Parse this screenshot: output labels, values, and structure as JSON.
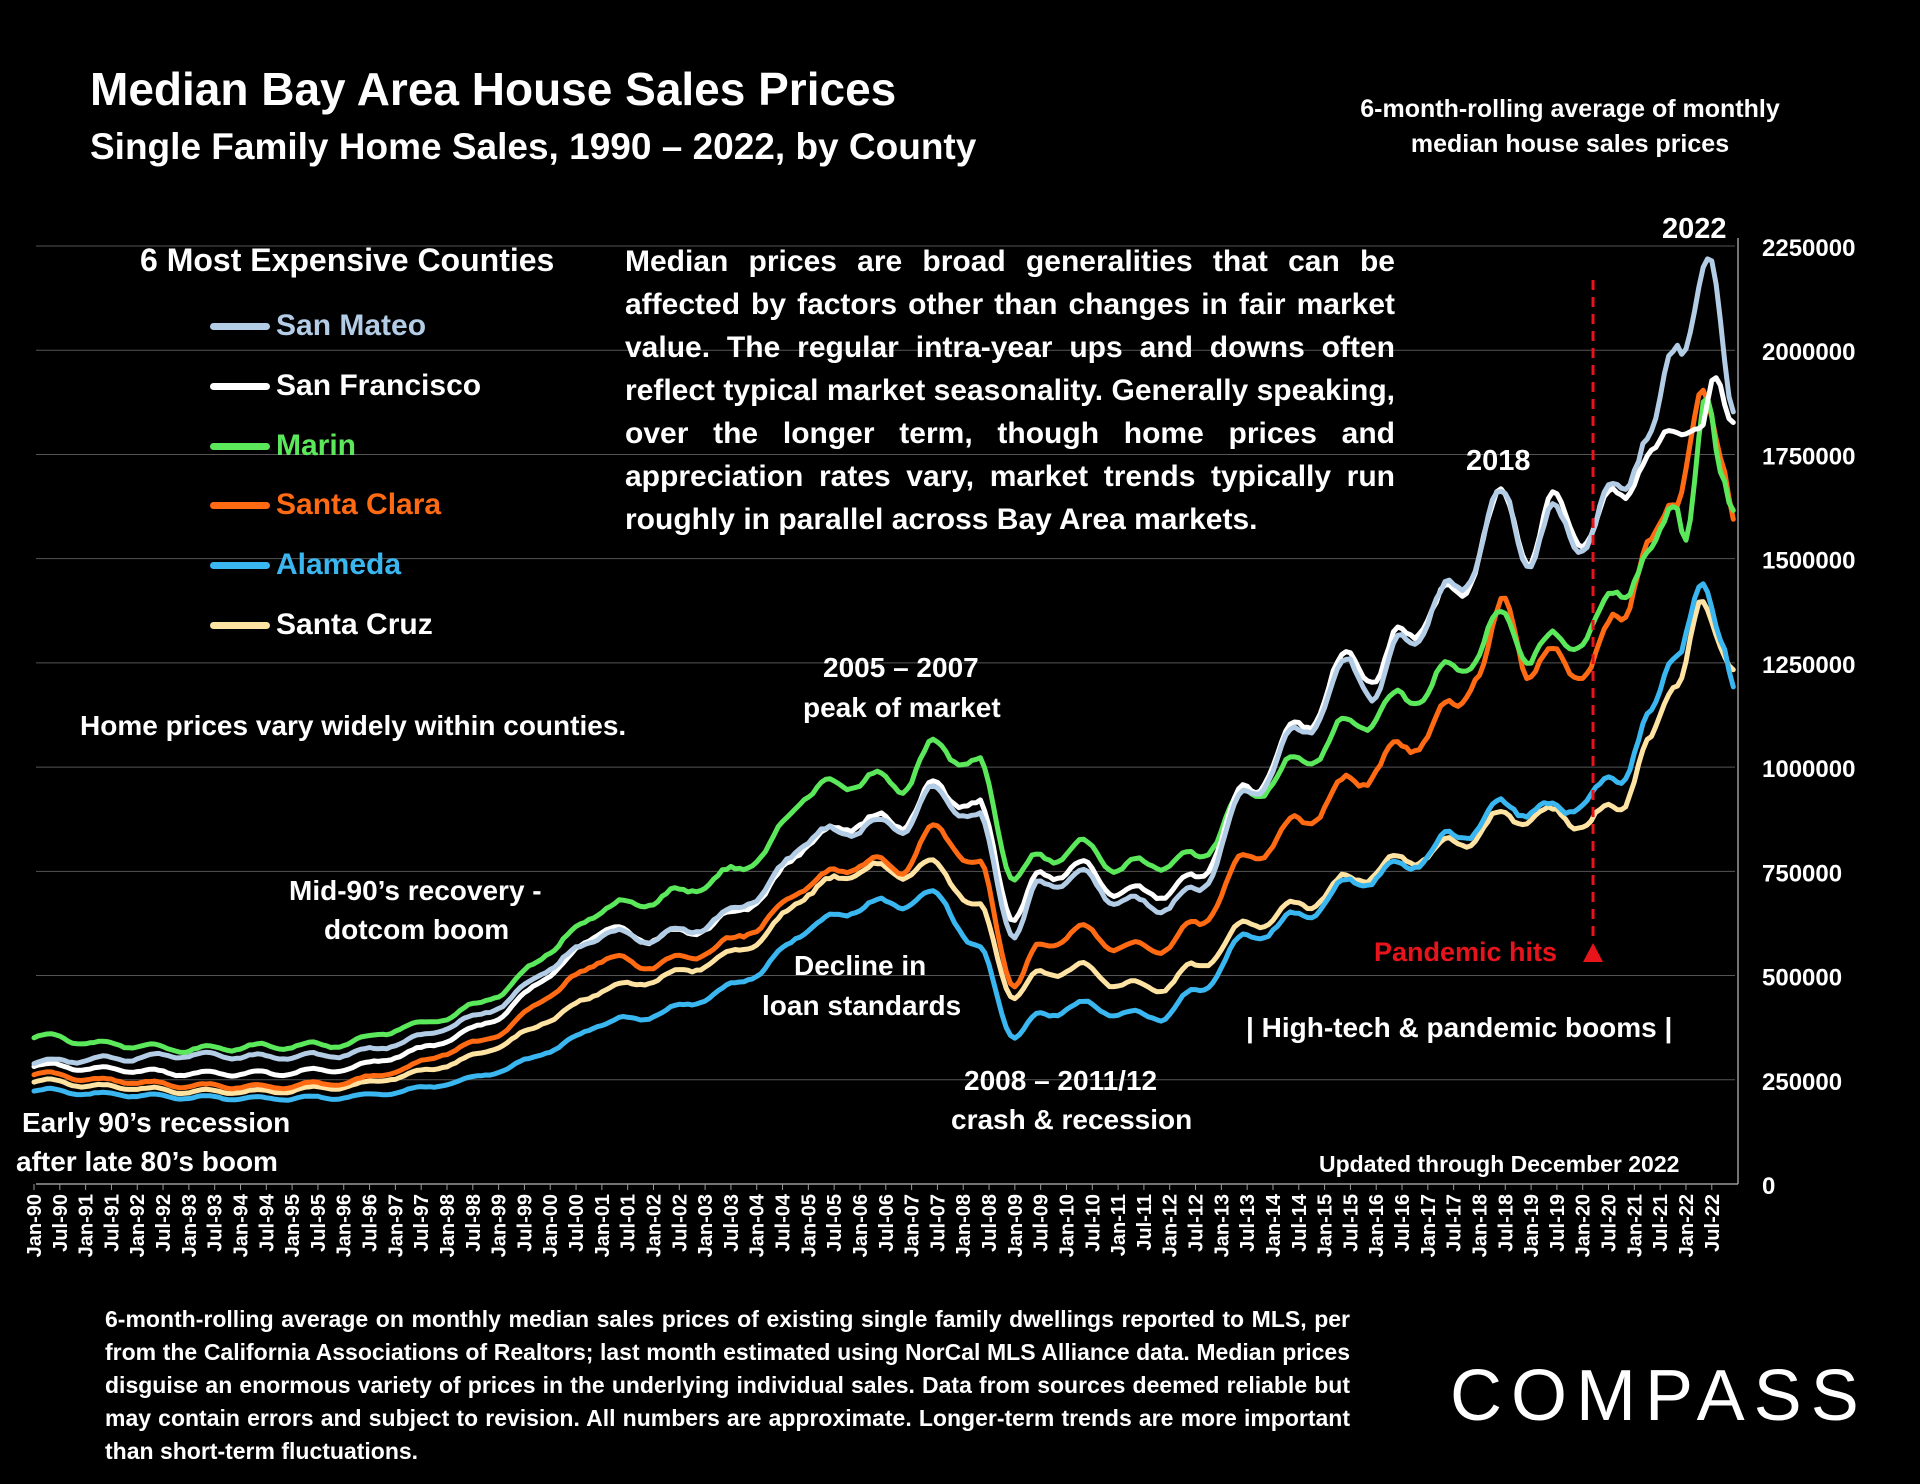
{
  "page": {
    "title": "Median Bay Area House Sales Prices",
    "subtitle": "Single Family Home Sales, 1990 – 2022, by County",
    "top_note": "6-month-rolling average of monthly median house sales prices",
    "legend_title": "6 Most Expensive Counties",
    "disclaimer": "Median prices are broad generalities that can be affected by factors other than changes in fair market value. The regular intra-year ups and downs often reflect typical market seasonality. Generally speaking, over the longer term, though home prices and appreciation rates vary, market trends typically run roughly in parallel across Bay Area markets.",
    "footnote": "6-month-rolling average on monthly median sales prices of existing single family dwellings reported to MLS, per from the California Associations of Realtors; last month estimated using NorCal MLS Alliance data. Median prices disguise an enormous variety of prices in the underlying individual sales. Data from sources deemed reliable but may contain errors and subject to revision. All numbers are approximate. Longer-term trends are more important than short-term fluctuations.",
    "brand": "COMPASS"
  },
  "annotations": {
    "label_2022": "2022",
    "label_2018": "2018",
    "peak_line1": "2005 – 2007",
    "peak_line2": "peak of market",
    "vary": "Home prices vary widely within counties.",
    "mid90_line1": "Mid-90’s recovery -",
    "mid90_line2": "dotcom boom",
    "decline_line1": "Decline in",
    "decline_line2": "loan standards",
    "crash_line1": "2008 – 2011/12",
    "crash_line2": "crash & recession",
    "early_line1": "Early 90’s recession",
    "early_line2": "after late 80’s boom",
    "pandemic": "Pandemic hits",
    "hightech": "| High-tech & pandemic booms |",
    "updated": "Updated through December 2022"
  },
  "colors": {
    "background": "#000000",
    "pandemic_red": "#e8141b",
    "grid": "#555555"
  },
  "chart_data": {
    "type": "line",
    "title": "Median Bay Area House Sales Prices",
    "subtitle": "Single Family Home Sales, 1990 – 2022, by County",
    "xlabel": "",
    "ylabel": "",
    "ylim": [
      0,
      2250000
    ],
    "yticks": [
      0,
      250000,
      500000,
      750000,
      1000000,
      1250000,
      1500000,
      1750000,
      2000000,
      2250000
    ],
    "ytick_labels": [
      "0",
      "250000",
      "500000",
      "750000",
      "1000000",
      "1250000",
      "1500000",
      "1750000",
      "2000000",
      "2250000"
    ],
    "grid": true,
    "xtick_labels": [
      "Jan-90",
      "Jul-90",
      "Jan-91",
      "Jul-91",
      "Jan-92",
      "Jul-92",
      "Jan-93",
      "Jul-93",
      "Jan-94",
      "Jul-94",
      "Jan-95",
      "Jul-95",
      "Jan-96",
      "Jul-96",
      "Jan-97",
      "Jul-97",
      "Jan-98",
      "Jul-98",
      "Jan-99",
      "Jul-99",
      "Jan-00",
      "Jul-00",
      "Jan-01",
      "Jul-01",
      "Jan-02",
      "Jul-02",
      "Jan-03",
      "Jul-03",
      "Jan-04",
      "Jul-04",
      "Jan-05",
      "Jul-05",
      "Jan-06",
      "Jul-06",
      "Jan-07",
      "Jul-07",
      "Jan-08",
      "Jul-08",
      "Jan-09",
      "Jul-09",
      "Jan-10",
      "Jul-10",
      "Jan-11",
      "Jul-11",
      "Jan-12",
      "Jul-12",
      "Jan-13",
      "Jul-13",
      "Jan-14",
      "Jul-14",
      "Jan-15",
      "Jul-15",
      "Jan-16",
      "Jul-16",
      "Jan-17",
      "Jul-17",
      "Jan-18",
      "Jul-18",
      "Jan-19",
      "Jul-19",
      "Jan-20",
      "Jul-20",
      "Jan-21",
      "Jul-21",
      "Jan-22",
      "Jul-22"
    ],
    "x_start_year": 1990,
    "x_end_year": 2022.95,
    "pandemic_year": 2020.2,
    "series": [
      {
        "name": "Santa Cruz",
        "color": "#ffe3a3",
        "points": [
          [
            1990.0,
            248000
          ],
          [
            1991.5,
            233000
          ],
          [
            1993.0,
            222000
          ],
          [
            1994.5,
            222000
          ],
          [
            1996.0,
            233000
          ],
          [
            1997.0,
            255000
          ],
          [
            1998.0,
            285000
          ],
          [
            1999.0,
            330000
          ],
          [
            2000.0,
            395000
          ],
          [
            2001.0,
            465000
          ],
          [
            2002.0,
            490000
          ],
          [
            2003.0,
            525000
          ],
          [
            2004.0,
            580000
          ],
          [
            2005.0,
            700000
          ],
          [
            2006.0,
            755000
          ],
          [
            2006.8,
            750000
          ],
          [
            2007.5,
            760000
          ],
          [
            2008.3,
            660000
          ],
          [
            2009.0,
            450000
          ],
          [
            2009.5,
            505000
          ],
          [
            2010.3,
            520000
          ],
          [
            2011.0,
            480000
          ],
          [
            2011.8,
            470000
          ],
          [
            2012.5,
            520000
          ],
          [
            2013.5,
            620000
          ],
          [
            2014.5,
            665000
          ],
          [
            2015.5,
            730000
          ],
          [
            2016.5,
            775000
          ],
          [
            2017.5,
            815000
          ],
          [
            2018.5,
            880000
          ],
          [
            2019.5,
            885000
          ],
          [
            2020.1,
            865000
          ],
          [
            2020.7,
            910000
          ],
          [
            2021.3,
            1050000
          ],
          [
            2021.8,
            1215000
          ],
          [
            2022.3,
            1370000
          ],
          [
            2022.7,
            1295000
          ],
          [
            2022.95,
            1260000
          ]
        ]
      },
      {
        "name": "Alameda",
        "color": "#3ab7f0",
        "points": [
          [
            1990.0,
            225000
          ],
          [
            1991.5,
            215000
          ],
          [
            1993.0,
            208000
          ],
          [
            1994.5,
            205000
          ],
          [
            1996.0,
            208000
          ],
          [
            1997.0,
            220000
          ],
          [
            1998.0,
            240000
          ],
          [
            1999.0,
            270000
          ],
          [
            2000.0,
            320000
          ],
          [
            2001.0,
            385000
          ],
          [
            2002.0,
            405000
          ],
          [
            2003.0,
            445000
          ],
          [
            2004.0,
            505000
          ],
          [
            2005.0,
            615000
          ],
          [
            2006.0,
            665000
          ],
          [
            2006.8,
            675000
          ],
          [
            2007.5,
            690000
          ],
          [
            2008.3,
            560000
          ],
          [
            2009.0,
            355000
          ],
          [
            2009.5,
            405000
          ],
          [
            2010.3,
            430000
          ],
          [
            2011.0,
            410000
          ],
          [
            2011.8,
            400000
          ],
          [
            2012.5,
            460000
          ],
          [
            2013.5,
            590000
          ],
          [
            2014.5,
            640000
          ],
          [
            2015.5,
            720000
          ],
          [
            2016.5,
            760000
          ],
          [
            2017.5,
            830000
          ],
          [
            2018.5,
            905000
          ],
          [
            2019.5,
            895000
          ],
          [
            2020.1,
            925000
          ],
          [
            2020.7,
            975000
          ],
          [
            2021.3,
            1110000
          ],
          [
            2021.8,
            1290000
          ],
          [
            2022.3,
            1415000
          ],
          [
            2022.7,
            1320000
          ],
          [
            2022.95,
            1210000
          ]
        ]
      },
      {
        "name": "Santa Clara",
        "color": "#ff6a13",
        "points": [
          [
            1990.0,
            265000
          ],
          [
            1991.5,
            248000
          ],
          [
            1993.0,
            236000
          ],
          [
            1994.5,
            233000
          ],
          [
            1996.0,
            243000
          ],
          [
            1997.0,
            270000
          ],
          [
            1998.0,
            315000
          ],
          [
            1999.0,
            360000
          ],
          [
            2000.0,
            455000
          ],
          [
            2001.0,
            540000
          ],
          [
            2002.0,
            525000
          ],
          [
            2003.0,
            555000
          ],
          [
            2004.0,
            615000
          ],
          [
            2005.0,
            720000
          ],
          [
            2006.0,
            770000
          ],
          [
            2006.8,
            760000
          ],
          [
            2007.5,
            850000
          ],
          [
            2008.3,
            760000
          ],
          [
            2009.0,
            480000
          ],
          [
            2009.5,
            570000
          ],
          [
            2010.3,
            610000
          ],
          [
            2011.0,
            570000
          ],
          [
            2011.8,
            565000
          ],
          [
            2012.5,
            620000
          ],
          [
            2013.5,
            780000
          ],
          [
            2014.5,
            865000
          ],
          [
            2015.5,
            960000
          ],
          [
            2016.5,
            1040000
          ],
          [
            2017.5,
            1140000
          ],
          [
            2018.0,
            1240000
          ],
          [
            2018.5,
            1385000
          ],
          [
            2019.0,
            1230000
          ],
          [
            2019.5,
            1265000
          ],
          [
            2020.1,
            1225000
          ],
          [
            2020.7,
            1375000
          ],
          [
            2021.3,
            1510000
          ],
          [
            2021.8,
            1665000
          ],
          [
            2022.3,
            1860000
          ],
          [
            2022.7,
            1760000
          ],
          [
            2022.95,
            1625000
          ]
        ]
      },
      {
        "name": "Marin",
        "color": "#5be85b",
        "points": [
          [
            1990.0,
            355000
          ],
          [
            1991.5,
            335000
          ],
          [
            1993.0,
            323000
          ],
          [
            1994.5,
            330000
          ],
          [
            1996.0,
            335000
          ],
          [
            1997.0,
            370000
          ],
          [
            1998.0,
            400000
          ],
          [
            1999.0,
            455000
          ],
          [
            2000.0,
            560000
          ],
          [
            2001.0,
            660000
          ],
          [
            2002.0,
            680000
          ],
          [
            2003.0,
            720000
          ],
          [
            2004.0,
            780000
          ],
          [
            2005.0,
            940000
          ],
          [
            2006.0,
            970000
          ],
          [
            2006.8,
            960000
          ],
          [
            2007.5,
            1050000
          ],
          [
            2008.3,
            1000000
          ],
          [
            2009.0,
            740000
          ],
          [
            2009.5,
            780000
          ],
          [
            2010.3,
            810000
          ],
          [
            2011.0,
            760000
          ],
          [
            2011.8,
            770000
          ],
          [
            2012.5,
            780000
          ],
          [
            2013.5,
            935000
          ],
          [
            2014.5,
            1010000
          ],
          [
            2015.5,
            1100000
          ],
          [
            2016.5,
            1160000
          ],
          [
            2017.5,
            1230000
          ],
          [
            2018.5,
            1350000
          ],
          [
            2019.0,
            1270000
          ],
          [
            2019.5,
            1300000
          ],
          [
            2020.1,
            1315000
          ],
          [
            2020.7,
            1430000
          ],
          [
            2021.3,
            1490000
          ],
          [
            2021.8,
            1660000
          ],
          [
            2022.0,
            1570000
          ],
          [
            2022.4,
            1850000
          ],
          [
            2022.7,
            1720000
          ],
          [
            2022.95,
            1640000
          ]
        ]
      },
      {
        "name": "San Francisco",
        "color": "#ffffff",
        "points": [
          [
            1990.0,
            285000
          ],
          [
            1991.5,
            275000
          ],
          [
            1993.0,
            265000
          ],
          [
            1994.5,
            265000
          ],
          [
            1996.0,
            275000
          ],
          [
            1997.0,
            305000
          ],
          [
            1998.0,
            345000
          ],
          [
            1999.0,
            400000
          ],
          [
            2000.0,
            505000
          ],
          [
            2001.0,
            610000
          ],
          [
            2002.0,
            590000
          ],
          [
            2003.0,
            615000
          ],
          [
            2004.0,
            680000
          ],
          [
            2005.0,
            820000
          ],
          [
            2006.0,
            870000
          ],
          [
            2006.8,
            870000
          ],
          [
            2007.5,
            950000
          ],
          [
            2008.3,
            900000
          ],
          [
            2009.0,
            640000
          ],
          [
            2009.5,
            740000
          ],
          [
            2010.3,
            760000
          ],
          [
            2011.0,
            700000
          ],
          [
            2011.8,
            700000
          ],
          [
            2012.5,
            730000
          ],
          [
            2013.5,
            940000
          ],
          [
            2014.5,
            1090000
          ],
          [
            2015.5,
            1260000
          ],
          [
            2016.0,
            1220000
          ],
          [
            2016.5,
            1320000
          ],
          [
            2017.5,
            1410000
          ],
          [
            2018.5,
            1640000
          ],
          [
            2019.0,
            1510000
          ],
          [
            2019.5,
            1640000
          ],
          [
            2020.1,
            1540000
          ],
          [
            2020.7,
            1680000
          ],
          [
            2021.3,
            1720000
          ],
          [
            2021.8,
            1850000
          ],
          [
            2022.3,
            1780000
          ],
          [
            2022.6,
            1940000
          ],
          [
            2022.95,
            1860000
          ]
        ]
      },
      {
        "name": "San Mateo",
        "color": "#b3cde6",
        "points": [
          [
            1990.0,
            293000
          ],
          [
            1991.5,
            300000
          ],
          [
            1993.0,
            310000
          ],
          [
            1994.5,
            305000
          ],
          [
            1996.0,
            310000
          ],
          [
            1997.0,
            335000
          ],
          [
            1998.0,
            375000
          ],
          [
            1999.0,
            425000
          ],
          [
            2000.0,
            520000
          ],
          [
            2001.0,
            600000
          ],
          [
            2002.0,
            590000
          ],
          [
            2003.0,
            620000
          ],
          [
            2004.0,
            690000
          ],
          [
            2005.0,
            830000
          ],
          [
            2006.0,
            855000
          ],
          [
            2006.8,
            860000
          ],
          [
            2007.5,
            940000
          ],
          [
            2008.3,
            870000
          ],
          [
            2009.0,
            600000
          ],
          [
            2009.5,
            720000
          ],
          [
            2010.3,
            740000
          ],
          [
            2011.0,
            680000
          ],
          [
            2011.8,
            665000
          ],
          [
            2012.5,
            700000
          ],
          [
            2013.5,
            930000
          ],
          [
            2014.5,
            1080000
          ],
          [
            2015.5,
            1240000
          ],
          [
            2016.0,
            1180000
          ],
          [
            2016.5,
            1300000
          ],
          [
            2017.5,
            1420000
          ],
          [
            2018.5,
            1640000
          ],
          [
            2019.0,
            1500000
          ],
          [
            2019.5,
            1610000
          ],
          [
            2020.1,
            1530000
          ],
          [
            2020.7,
            1700000
          ],
          [
            2021.3,
            1760000
          ],
          [
            2021.8,
            2050000
          ],
          [
            2022.0,
            2030000
          ],
          [
            2022.5,
            2190000
          ],
          [
            2022.95,
            1880000
          ]
        ]
      }
    ],
    "legend": [
      "San Mateo",
      "San Francisco",
      "Marin",
      "Santa Clara",
      "Alameda",
      "Santa Cruz"
    ],
    "legend_position": "top-left"
  }
}
